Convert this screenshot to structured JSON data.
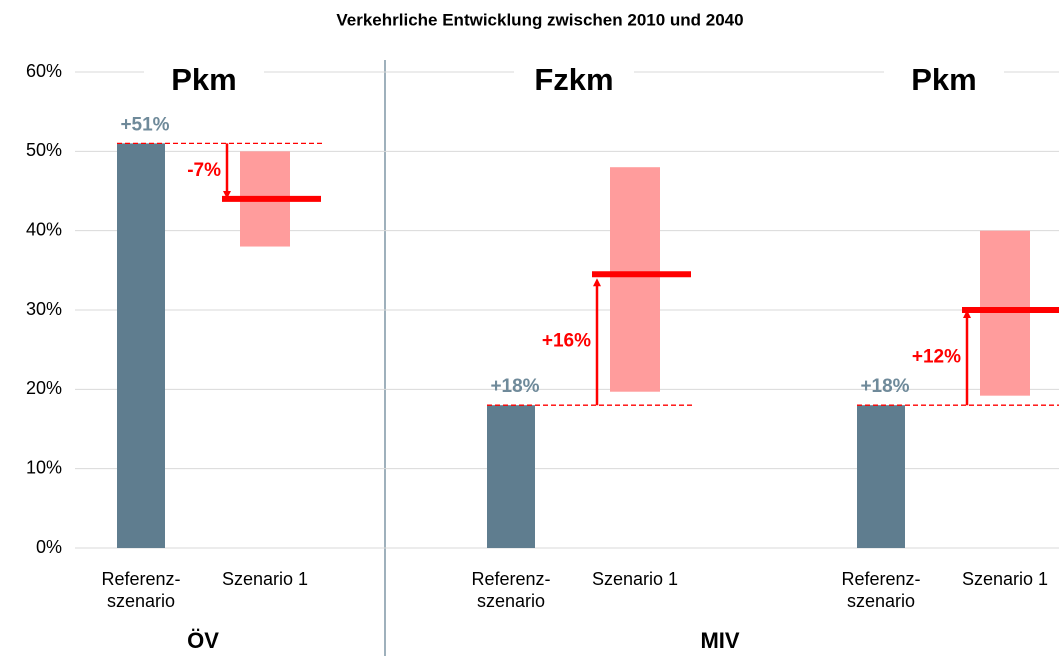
{
  "chart_data": {
    "type": "bar",
    "title": "Verkehrliche Entwicklung zwischen 2010 und 2040",
    "ylim": [
      0,
      60
    ],
    "yticks": [
      {
        "value": 0,
        "label": "0%"
      },
      {
        "value": 10,
        "label": "10%"
      },
      {
        "value": 20,
        "label": "20%"
      },
      {
        "value": 30,
        "label": "30%"
      },
      {
        "value": 40,
        "label": "40%"
      },
      {
        "value": 50,
        "label": "50%"
      },
      {
        "value": 60,
        "label": "60%"
      }
    ],
    "grid": true,
    "colors": {
      "reference": "#5f7d8f",
      "range": "#ff9c9c",
      "scenario": "#ff0000",
      "reference_label": "#6f8a9a"
    },
    "groups": [
      {
        "name": "ÖV",
        "panels": [
          {
            "title": "Pkm",
            "categories": [
              "Referenz-\nszenario",
              "Szenario 1"
            ],
            "reference": 51,
            "reference_label": "+51%",
            "range": [
              38,
              50
            ],
            "scenario": 44,
            "change": -7,
            "change_label": "-7%"
          }
        ]
      },
      {
        "name": "MIV",
        "panels": [
          {
            "title": "Fzkm",
            "categories": [
              "Referenz-\nszenario",
              "Szenario 1"
            ],
            "reference": 18,
            "reference_label": "+18%",
            "range": [
              19.7,
              48
            ],
            "scenario": 34.5,
            "change": 16,
            "change_label": "+16%"
          },
          {
            "title": "Pkm",
            "categories": [
              "Referenz-\nszenario",
              "Szenario 1"
            ],
            "reference": 18,
            "reference_label": "+18%",
            "range": [
              19.2,
              40
            ],
            "scenario": 30,
            "change": 12,
            "change_label": "+12%"
          }
        ]
      }
    ]
  }
}
